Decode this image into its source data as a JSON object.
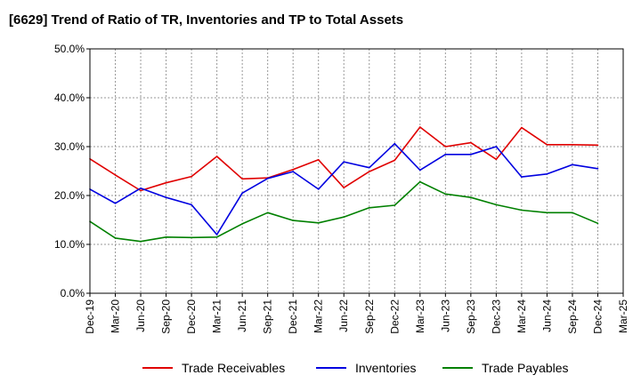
{
  "chart_data": {
    "type": "line",
    "title": "[6629]  Trend of Ratio of TR, Inventories and TP to Total Assets",
    "xlabel": "",
    "ylabel": "",
    "categories": [
      "Dec-19",
      "Mar-20",
      "Jun-20",
      "Sep-20",
      "Dec-20",
      "Mar-21",
      "Jun-21",
      "Sep-21",
      "Dec-21",
      "Mar-22",
      "Jun-22",
      "Sep-22",
      "Dec-22",
      "Mar-23",
      "Jun-23",
      "Sep-23",
      "Dec-23",
      "Mar-24",
      "Jun-24",
      "Sep-24",
      "Dec-24",
      "Mar-25"
    ],
    "y_ticks": [
      "0.0%",
      "10.0%",
      "20.0%",
      "30.0%",
      "40.0%",
      "50.0%"
    ],
    "ylim": [
      0,
      50
    ],
    "y_unit": "%",
    "grid": true,
    "legend_position": "bottom",
    "series": [
      {
        "name": "Trade Receivables",
        "color": "#e00000",
        "values": [
          27.5,
          24.2,
          21.0,
          22.6,
          23.9,
          28.0,
          23.4,
          23.6,
          25.3,
          27.3,
          21.6,
          24.9,
          27.2,
          34.0,
          30.0,
          30.8,
          27.4,
          33.9,
          30.4,
          30.4,
          30.3,
          null
        ]
      },
      {
        "name": "Inventories",
        "color": "#0000e0",
        "values": [
          21.3,
          18.4,
          21.5,
          19.6,
          18.1,
          12.0,
          20.5,
          23.5,
          24.9,
          21.3,
          26.9,
          25.7,
          30.6,
          25.2,
          28.4,
          28.4,
          30.0,
          23.8,
          24.4,
          26.3,
          25.5,
          null
        ]
      },
      {
        "name": "Trade Payables",
        "color": "#008000",
        "values": [
          14.7,
          11.3,
          10.6,
          11.5,
          11.4,
          11.5,
          14.2,
          16.5,
          14.9,
          14.4,
          15.6,
          17.5,
          18.0,
          22.8,
          20.3,
          19.6,
          18.1,
          17.0,
          16.5,
          16.5,
          14.3,
          null
        ]
      }
    ]
  }
}
